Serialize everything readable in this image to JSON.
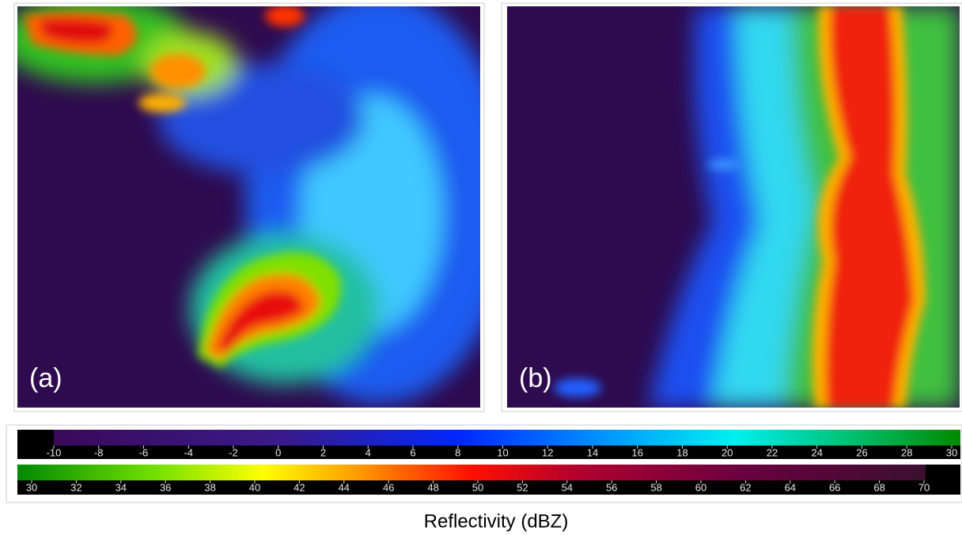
{
  "panels": [
    {
      "label": "(a)"
    },
    {
      "label": "(b)"
    }
  ],
  "colorbar": {
    "rows": [
      {
        "ticks": [
          -10,
          -8,
          -6,
          -4,
          -2,
          0,
          2,
          4,
          6,
          8,
          10,
          12,
          14,
          16,
          18,
          20,
          22,
          24,
          26,
          28,
          30
        ]
      },
      {
        "ticks": [
          30,
          32,
          34,
          36,
          38,
          40,
          42,
          44,
          46,
          48,
          50,
          52,
          54,
          56,
          58,
          60,
          62,
          64,
          66,
          68,
          70
        ]
      }
    ]
  },
  "caption": "Reflectivity (dBZ)"
}
